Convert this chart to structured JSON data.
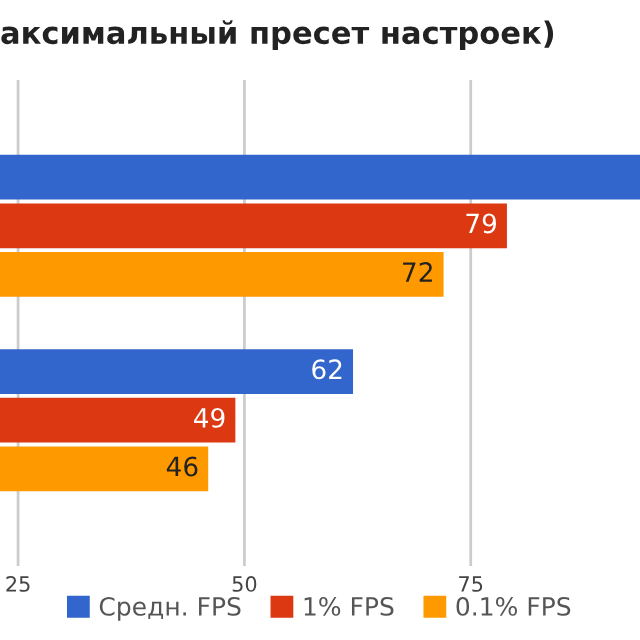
{
  "chart_data": {
    "type": "bar",
    "orientation": "horizontal",
    "title": "аксимальный пресет настроек)",
    "categories": [
      null,
      null
    ],
    "series": [
      {
        "name": "Средн. FPS",
        "color": "#3366cc",
        "values": [
          93.7,
          62
        ],
        "value_labels": [
          null,
          "62"
        ]
      },
      {
        "name": "1% FPS",
        "color": "#dc3912",
        "values": [
          79,
          49
        ],
        "value_labels": [
          "79",
          "49"
        ]
      },
      {
        "name": "0.1% FPS",
        "color": "#ff9900",
        "values": [
          72,
          46
        ],
        "value_labels": [
          "72",
          "46"
        ]
      }
    ],
    "xlim": [
      23,
      93.7
    ],
    "xticks": [
      25,
      50,
      75
    ],
    "grid": "x",
    "legend": "bottom"
  }
}
